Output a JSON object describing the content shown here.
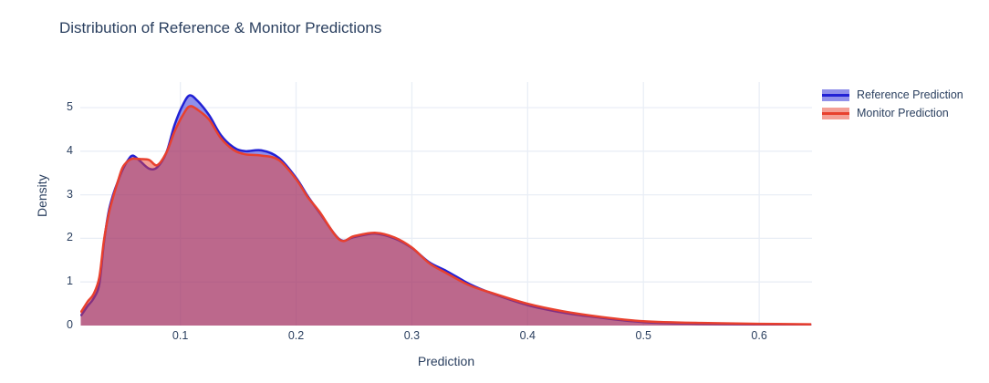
{
  "title": "Distribution of Reference & Monitor Predictions",
  "colors": {
    "background": "#ffffff",
    "title_text": "#2a3f5f",
    "tick_text": "#2a3f5f",
    "grid": "#e9eef6",
    "reference_line": "#2121d5",
    "reference_fill": "rgba(33,33,213,0.5)",
    "monitor_line": "#e8402e",
    "monitor_fill": "rgba(232,64,46,0.5)"
  },
  "legend": {
    "position": "top-right",
    "items": [
      "Reference Prediction",
      "Monitor Prediction"
    ]
  },
  "chart_data": {
    "type": "area",
    "title": "Distribution of Reference & Monitor Predictions",
    "xlabel": "Prediction",
    "ylabel": "Density",
    "x_range": [
      0.0136,
      0.6456
    ],
    "y_range": [
      0,
      5.586
    ],
    "x_ticks": [
      0.1,
      0.2,
      0.3,
      0.4,
      0.5,
      0.6
    ],
    "x_tick_labels": [
      "0.1",
      "0.2",
      "0.3",
      "0.4",
      "0.5",
      "0.6"
    ],
    "y_ticks": [
      0,
      1,
      2,
      3,
      4,
      5
    ],
    "y_tick_labels": [
      "0",
      "1",
      "2",
      "3",
      "4",
      "5"
    ],
    "grid": true,
    "legend_position": "top-right",
    "x": [
      0.014,
      0.02,
      0.025,
      0.03,
      0.034,
      0.038,
      0.042,
      0.046,
      0.05,
      0.055,
      0.059,
      0.065,
      0.073,
      0.08,
      0.088,
      0.095,
      0.102,
      0.108,
      0.115,
      0.125,
      0.135,
      0.146,
      0.156,
      0.17,
      0.185,
      0.2,
      0.21,
      0.22,
      0.2375,
      0.25,
      0.268,
      0.285,
      0.3,
      0.315,
      0.33,
      0.35,
      0.37,
      0.4,
      0.43,
      0.46,
      0.5,
      0.55,
      0.6,
      0.645
    ],
    "series": [
      {
        "name": "Reference Prediction",
        "line_color": "#2121d5",
        "fill_color": "rgba(33,33,213,0.5)",
        "values": [
          0.22,
          0.45,
          0.62,
          0.95,
          1.9,
          2.6,
          3.0,
          3.3,
          3.57,
          3.8,
          3.9,
          3.78,
          3.6,
          3.63,
          3.97,
          4.6,
          5.05,
          5.28,
          5.15,
          4.82,
          4.37,
          4.09,
          4.0,
          4.02,
          3.85,
          3.39,
          2.97,
          2.6,
          1.98,
          2.03,
          2.11,
          2.0,
          1.78,
          1.45,
          1.25,
          0.95,
          0.73,
          0.47,
          0.3,
          0.19,
          0.08,
          0.04,
          0.025,
          0.015
        ]
      },
      {
        "name": "Monitor Prediction",
        "line_color": "#e8402e",
        "fill_color": "rgba(232,64,46,0.5)",
        "values": [
          0.3,
          0.55,
          0.72,
          1.1,
          1.95,
          2.55,
          2.95,
          3.3,
          3.62,
          3.78,
          3.83,
          3.82,
          3.8,
          3.68,
          3.97,
          4.45,
          4.82,
          5.03,
          4.95,
          4.72,
          4.3,
          4.03,
          3.93,
          3.9,
          3.8,
          3.36,
          2.95,
          2.62,
          1.97,
          2.05,
          2.13,
          2.02,
          1.79,
          1.43,
          1.2,
          0.92,
          0.74,
          0.5,
          0.33,
          0.21,
          0.1,
          0.06,
          0.04,
          0.03
        ]
      }
    ]
  }
}
